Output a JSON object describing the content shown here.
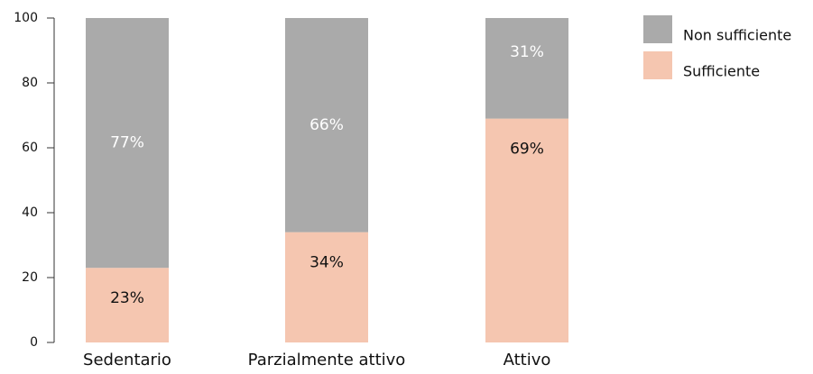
{
  "chart_data": {
    "type": "stacked_bar",
    "categories": [
      "Sedentario",
      "Parzialmente attivo",
      "Attivo"
    ],
    "series": [
      {
        "name": "Sufficiente",
        "color": "#f5c6b0",
        "label_color": "#111111",
        "values": [
          23,
          34,
          69
        ],
        "value_labels": [
          "23%",
          "34%",
          "69%"
        ]
      },
      {
        "name": "Non sufficiente",
        "color": "#aaaaaa",
        "label_color": "#ffffff",
        "values": [
          77,
          66,
          31
        ],
        "value_labels": [
          "77%",
          "66%",
          "31%"
        ]
      }
    ],
    "ylim": [
      0,
      100
    ],
    "yticks": [
      0,
      20,
      40,
      60,
      80,
      100
    ],
    "grid": false,
    "legend": "top-right"
  }
}
